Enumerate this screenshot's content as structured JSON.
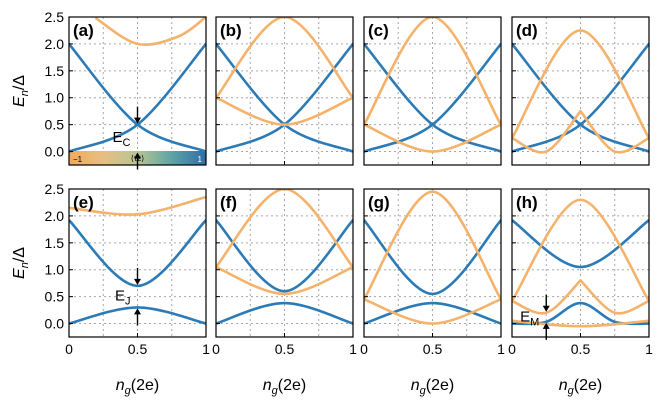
{
  "figure": {
    "colors": {
      "blue": "#2c7bb6",
      "orange": "#f5b26b",
      "grid": "#a6a6a6",
      "axis": "#000000",
      "arrow": "#000000"
    },
    "colorbar": {
      "min_label": "−1",
      "mid_label": "⟨τ_z⟩",
      "max_label": "1",
      "stops": [
        "#f2a95c",
        "#e7bf82",
        "#b7c594",
        "#5ea3a6",
        "#2f6ea8"
      ]
    },
    "ylabel_rows": [
      "E_n/Δ",
      "E_n/Δ"
    ],
    "xlabel": "n_g(2e)"
  },
  "chart_data": [
    {
      "panel": "a",
      "label": "(a)",
      "type": "line",
      "xlim": [
        0,
        1
      ],
      "ylim": [
        -0.25,
        2.5
      ],
      "xticks": [
        "0",
        "0.5",
        "1"
      ],
      "yticks": [
        "0.0",
        "0.5",
        "1.0",
        "1.5",
        "2.0",
        "2.5"
      ],
      "grid": true,
      "show_yticklabels": true,
      "show_xticklabels": false,
      "series": [
        {
          "color": "blue",
          "x": [
            0,
            0.5,
            1
          ],
          "y": [
            0,
            0.5,
            2
          ]
        },
        {
          "color": "blue",
          "x": [
            0,
            0.5,
            1
          ],
          "y": [
            2,
            0.5,
            0
          ]
        },
        {
          "color": "orange",
          "x": [
            0.2,
            0.5,
            0.8,
            1
          ],
          "y": [
            2.47,
            2.0,
            2.14,
            2.5
          ]
        }
      ],
      "annotations": [
        {
          "text": "E_C",
          "x": 0.5,
          "y0": 0.0,
          "y1": 0.5
        }
      ],
      "colorbar": true
    },
    {
      "panel": "b",
      "label": "(b)",
      "type": "line",
      "xlim": [
        0,
        1
      ],
      "ylim": [
        -0.25,
        2.5
      ],
      "xticks": [
        "0",
        "0.5",
        "1"
      ],
      "yticks": [
        "0.0",
        "0.5",
        "1.0",
        "1.5",
        "2.0",
        "2.5"
      ],
      "grid": true,
      "show_yticklabels": false,
      "show_xticklabels": false,
      "series": [
        {
          "color": "blue",
          "x": [
            0,
            0.5,
            1
          ],
          "y": [
            0,
            0.5,
            2
          ]
        },
        {
          "color": "blue",
          "x": [
            0,
            0.5,
            1
          ],
          "y": [
            2,
            0.5,
            0
          ]
        },
        {
          "color": "orange",
          "x": [
            0,
            0.5,
            1
          ],
          "y": [
            1,
            0.5,
            1
          ]
        },
        {
          "color": "orange",
          "x": [
            0,
            0.5,
            1
          ],
          "y": [
            1,
            2.5,
            1
          ]
        }
      ]
    },
    {
      "panel": "c",
      "label": "(c)",
      "type": "line",
      "xlim": [
        0,
        1
      ],
      "ylim": [
        -0.25,
        2.5
      ],
      "xticks": [
        "0",
        "0.5",
        "1"
      ],
      "yticks": [
        "0.0",
        "0.5",
        "1.0",
        "1.5",
        "2.0",
        "2.5"
      ],
      "grid": true,
      "show_yticklabels": false,
      "show_xticklabels": false,
      "series": [
        {
          "color": "blue",
          "x": [
            0,
            0.5,
            1
          ],
          "y": [
            0,
            0.5,
            2
          ]
        },
        {
          "color": "blue",
          "x": [
            0,
            0.5,
            1
          ],
          "y": [
            2,
            0.5,
            0
          ]
        },
        {
          "color": "orange",
          "x": [
            0,
            0.5,
            1
          ],
          "y": [
            0.5,
            0,
            0.5
          ]
        },
        {
          "color": "orange",
          "x": [
            0,
            0.5,
            1
          ],
          "y": [
            0.5,
            2.5,
            0.5
          ]
        }
      ]
    },
    {
      "panel": "d",
      "label": "(d)",
      "type": "line",
      "xlim": [
        0,
        1
      ],
      "ylim": [
        -0.25,
        2.5
      ],
      "xticks": [
        "0",
        "0.5",
        "1"
      ],
      "yticks": [
        "0.0",
        "0.5",
        "1.0",
        "1.5",
        "2.0",
        "2.5"
      ],
      "grid": true,
      "show_yticklabels": false,
      "show_xticklabels": false,
      "series": [
        {
          "color": "blue",
          "x": [
            0,
            0.5,
            1
          ],
          "y": [
            0,
            0.5,
            2
          ]
        },
        {
          "color": "blue",
          "x": [
            0,
            0.5,
            1
          ],
          "y": [
            2,
            0.5,
            0
          ]
        },
        {
          "color": "orange",
          "x": [
            0,
            0.25,
            0.5
          ],
          "y": [
            0.25,
            0,
            0.75
          ]
        },
        {
          "color": "orange",
          "x": [
            0.5,
            0.75,
            1
          ],
          "y": [
            0.75,
            0,
            0.25
          ]
        },
        {
          "color": "orange",
          "x": [
            0,
            0.5,
            1
          ],
          "y": [
            0.25,
            2.25,
            0.25
          ]
        }
      ]
    },
    {
      "panel": "e",
      "label": "(e)",
      "type": "line",
      "xlim": [
        0,
        1
      ],
      "ylim": [
        -0.25,
        2.5
      ],
      "xticks": [
        "0",
        "0.5",
        "1"
      ],
      "yticks": [
        "0.0",
        "0.5",
        "1.0",
        "1.5",
        "2.0",
        "2.5"
      ],
      "grid": true,
      "show_yticklabels": true,
      "show_xticklabels": true,
      "series": [
        {
          "color": "blue",
          "x": [
            0,
            0.5,
            1
          ],
          "y": [
            0,
            0.3,
            0
          ]
        },
        {
          "color": "blue",
          "x": [
            0,
            0.5,
            1
          ],
          "y": [
            1.92,
            0.7,
            1.92
          ]
        },
        {
          "color": "orange",
          "x": [
            0,
            0.5,
            1
          ],
          "y": [
            2.15,
            2.03,
            2.35
          ]
        }
      ],
      "annotations": [
        {
          "text": "E_J",
          "x": 0.5,
          "y0": 0.3,
          "y1": 0.7
        }
      ]
    },
    {
      "panel": "f",
      "label": "(f)",
      "type": "line",
      "xlim": [
        0,
        1
      ],
      "ylim": [
        -0.25,
        2.5
      ],
      "xticks": [
        "0",
        "0.5",
        "1"
      ],
      "yticks": [
        "0.0",
        "0.5",
        "1.0",
        "1.5",
        "2.0",
        "2.5"
      ],
      "grid": true,
      "show_yticklabels": false,
      "show_xticklabels": true,
      "series": [
        {
          "color": "blue",
          "x": [
            0,
            0.5,
            1
          ],
          "y": [
            0,
            0.38,
            0
          ]
        },
        {
          "color": "blue",
          "x": [
            0,
            0.5,
            1
          ],
          "y": [
            1.92,
            0.6,
            1.92
          ]
        },
        {
          "color": "orange",
          "x": [
            0,
            0.5,
            1
          ],
          "y": [
            1.05,
            0.55,
            1.05
          ]
        },
        {
          "color": "orange",
          "x": [
            0,
            0.5,
            1
          ],
          "y": [
            1.05,
            2.5,
            1.05
          ]
        }
      ]
    },
    {
      "panel": "g",
      "label": "(g)",
      "type": "line",
      "xlim": [
        0,
        1
      ],
      "ylim": [
        -0.25,
        2.5
      ],
      "xticks": [
        "0",
        "0.5",
        "1"
      ],
      "yticks": [
        "0.0",
        "0.5",
        "1.0",
        "1.5",
        "2.0",
        "2.5"
      ],
      "grid": true,
      "show_yticklabels": false,
      "show_xticklabels": true,
      "series": [
        {
          "color": "blue",
          "x": [
            0,
            0.5,
            1
          ],
          "y": [
            0,
            0.38,
            0
          ]
        },
        {
          "color": "blue",
          "x": [
            0,
            0.5,
            1
          ],
          "y": [
            1.92,
            0.55,
            1.92
          ]
        },
        {
          "color": "orange",
          "x": [
            0,
            0.5,
            1
          ],
          "y": [
            0.45,
            0,
            0.45
          ]
        },
        {
          "color": "orange",
          "x": [
            0,
            0.5,
            1
          ],
          "y": [
            0.45,
            2.45,
            0.45
          ]
        }
      ]
    },
    {
      "panel": "h",
      "label": "(h)",
      "type": "line",
      "xlim": [
        0,
        1
      ],
      "ylim": [
        -0.25,
        2.5
      ],
      "xticks": [
        "0",
        "0.5",
        "1"
      ],
      "yticks": [
        "0.0",
        "0.5",
        "1.0",
        "1.5",
        "2.0",
        "2.5"
      ],
      "grid": true,
      "show_yticklabels": false,
      "show_xticklabels": true,
      "series": [
        {
          "color": "blue",
          "x": [
            0,
            0.25,
            0.5,
            0.75,
            1
          ],
          "y": [
            0,
            0.03,
            0.38,
            0.03,
            0
          ]
        },
        {
          "color": "blue",
          "x": [
            0,
            0.5,
            1
          ],
          "y": [
            1.92,
            1.05,
            1.92
          ]
        },
        {
          "color": "orange",
          "x": [
            0,
            0.25,
            0.5
          ],
          "y": [
            0.42,
            0.2,
            0.8
          ]
        },
        {
          "color": "orange",
          "x": [
            0.5,
            0.75,
            1
          ],
          "y": [
            0.8,
            0.2,
            0.42
          ]
        },
        {
          "color": "orange",
          "x": [
            0,
            0.5,
            1
          ],
          "y": [
            0.42,
            2.3,
            0.42
          ]
        },
        {
          "color": "orange",
          "x": [
            0,
            0.5,
            1
          ],
          "y": [
            0.05,
            -0.05,
            0.05
          ]
        }
      ],
      "annotations": [
        {
          "text": "E_M",
          "x": 0.25,
          "y0": 0.03,
          "y1": 0.2
        }
      ]
    }
  ]
}
